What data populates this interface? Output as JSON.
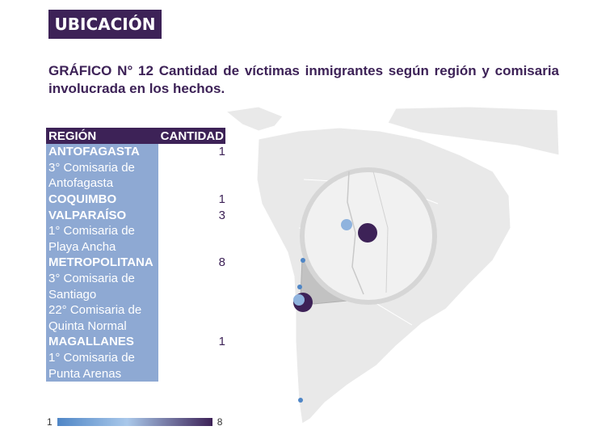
{
  "section_label": "UBICACIÓN",
  "title": "GRÁFICO N° 12 Cantidad de víctimas inmigrantes según región y comisaria involucrada en los hechos.",
  "table": {
    "headers": {
      "region": "REGIÓN",
      "quantity": "CANTIDAD"
    },
    "rows": [
      {
        "label": "ANTOFAGASTA",
        "qty": "1",
        "type": "region"
      },
      {
        "label": "3° Comisaria de",
        "qty": "",
        "type": "detail"
      },
      {
        "label": "Antofagasta",
        "qty": "",
        "type": "detail"
      },
      {
        "label": "COQUIMBO",
        "qty": "1",
        "type": "region"
      },
      {
        "label": "VALPARAÍSO",
        "qty": "3",
        "type": "region"
      },
      {
        "label": "1° Comisaria de",
        "qty": "",
        "type": "detail"
      },
      {
        "label": "Playa Ancha",
        "qty": "",
        "type": "detail"
      },
      {
        "label": "METROPOLITANA",
        "qty": "8",
        "type": "region"
      },
      {
        "label": "3° Comisaria de",
        "qty": "",
        "type": "detail"
      },
      {
        "label": "Santiago",
        "qty": "",
        "type": "detail"
      },
      {
        "label": "22° Comisaria de",
        "qty": "",
        "type": "detail"
      },
      {
        "label": "Quinta Normal",
        "qty": "",
        "type": "detail"
      },
      {
        "label": "MAGALLANES",
        "qty": "1",
        "type": "region"
      },
      {
        "label": "1° Comisaria de",
        "qty": "",
        "type": "detail"
      },
      {
        "label": "Punta Arenas",
        "qty": "",
        "type": "detail"
      }
    ]
  },
  "color_scale": {
    "min": "1",
    "max": "8",
    "min_color": "#4f86c6",
    "max_color": "#3d2257"
  },
  "colors": {
    "accent": "#3d2257",
    "table_fill": "#8ea9d3",
    "land": "#e9e9e9",
    "highlight": "#c2c2c2"
  }
}
